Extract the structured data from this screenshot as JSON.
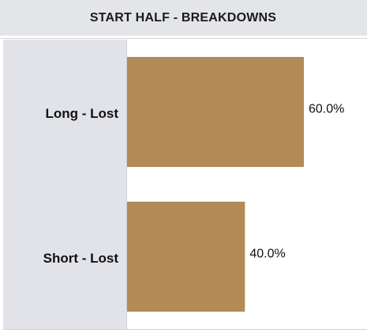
{
  "chart_data": {
    "type": "bar",
    "orientation": "horizontal",
    "title": "START HALF - BREAKDOWNS",
    "categories": [
      "Long - Lost",
      "Short - Lost"
    ],
    "values": [
      60,
      40
    ],
    "value_labels": [
      "60.0%",
      "40.0%"
    ],
    "color": "#b38b56"
  }
}
